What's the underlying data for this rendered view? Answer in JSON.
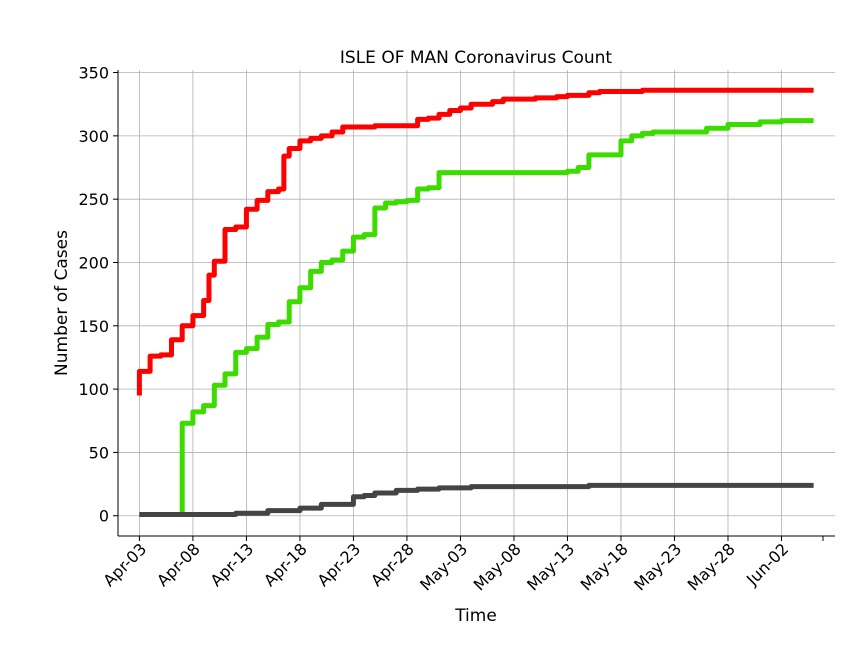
{
  "chart_data": {
    "type": "line",
    "title": "ISLE OF MAN Coronavirus Count",
    "xlabel": "Time",
    "ylabel": "Number of Cases",
    "x_start": "2020-04-01",
    "x_end": "2020-06-07",
    "ylim": [
      -16,
      352
    ],
    "yticks": [
      0,
      50,
      100,
      150,
      200,
      250,
      300,
      350
    ],
    "xticks": [
      {
        "date": "2020-04-03",
        "label": "Apr-03"
      },
      {
        "date": "2020-04-08",
        "label": "Apr-08"
      },
      {
        "date": "2020-04-13",
        "label": "Apr-13"
      },
      {
        "date": "2020-04-18",
        "label": "Apr-18"
      },
      {
        "date": "2020-04-23",
        "label": "Apr-23"
      },
      {
        "date": "2020-04-28",
        "label": "Apr-28"
      },
      {
        "date": "2020-05-03",
        "label": "May-03"
      },
      {
        "date": "2020-05-08",
        "label": "May-08"
      },
      {
        "date": "2020-05-13",
        "label": "May-13"
      },
      {
        "date": "2020-05-18",
        "label": "May-18"
      },
      {
        "date": "2020-05-23",
        "label": "May-23"
      },
      {
        "date": "2020-05-28",
        "label": "May-28"
      },
      {
        "date": "2020-06-02",
        "label": "Jun-02"
      }
    ],
    "grid": true,
    "step": true,
    "series": [
      {
        "color": "#ff0000",
        "points": [
          [
            "2020-04-03",
            95
          ],
          [
            "2020-04-03",
            114
          ],
          [
            "2020-04-04",
            126
          ],
          [
            "2020-04-05",
            127
          ],
          [
            "2020-04-06",
            139
          ],
          [
            "2020-04-07",
            150
          ],
          [
            "2020-04-08",
            158
          ],
          [
            "2020-04-09",
            170
          ],
          [
            "2020-04-09.5",
            190
          ],
          [
            "2020-04-10",
            201
          ],
          [
            "2020-04-11",
            226
          ],
          [
            "2020-04-12",
            228
          ],
          [
            "2020-04-13",
            242
          ],
          [
            "2020-04-14",
            249
          ],
          [
            "2020-04-15",
            256
          ],
          [
            "2020-04-16",
            258
          ],
          [
            "2020-04-16.5",
            284
          ],
          [
            "2020-04-17",
            290
          ],
          [
            "2020-04-18",
            296
          ],
          [
            "2020-04-19",
            298
          ],
          [
            "2020-04-20",
            300
          ],
          [
            "2020-04-21",
            303
          ],
          [
            "2020-04-22",
            307
          ],
          [
            "2020-04-25",
            308
          ],
          [
            "2020-04-29",
            313
          ],
          [
            "2020-04-30",
            314
          ],
          [
            "2020-05-01",
            317
          ],
          [
            "2020-05-02",
            320
          ],
          [
            "2020-05-03",
            322
          ],
          [
            "2020-05-04",
            325
          ],
          [
            "2020-05-06",
            327
          ],
          [
            "2020-05-07",
            329
          ],
          [
            "2020-05-10",
            330
          ],
          [
            "2020-05-12",
            331
          ],
          [
            "2020-05-13",
            332
          ],
          [
            "2020-05-15",
            334
          ],
          [
            "2020-05-16",
            335
          ],
          [
            "2020-05-20",
            336
          ],
          [
            "2020-06-05",
            336
          ]
        ]
      },
      {
        "color": "#3ddc00",
        "points": [
          [
            "2020-04-03",
            1
          ],
          [
            "2020-04-06",
            1
          ],
          [
            "2020-04-07",
            50
          ],
          [
            "2020-04-07",
            73
          ],
          [
            "2020-04-08",
            82
          ],
          [
            "2020-04-09",
            87
          ],
          [
            "2020-04-10",
            91
          ],
          [
            "2020-04-10",
            103
          ],
          [
            "2020-04-11",
            112
          ],
          [
            "2020-04-12",
            129
          ],
          [
            "2020-04-13",
            132
          ],
          [
            "2020-04-14",
            141
          ],
          [
            "2020-04-15",
            151
          ],
          [
            "2020-04-16",
            153
          ],
          [
            "2020-04-17",
            154
          ],
          [
            "2020-04-17",
            169
          ],
          [
            "2020-04-18",
            180
          ],
          [
            "2020-04-19",
            193
          ],
          [
            "2020-04-20",
            200
          ],
          [
            "2020-04-21",
            202
          ],
          [
            "2020-04-22",
            209
          ],
          [
            "2020-04-23",
            213
          ],
          [
            "2020-04-23",
            220
          ],
          [
            "2020-04-24",
            222
          ],
          [
            "2020-04-25",
            230
          ],
          [
            "2020-04-25",
            243
          ],
          [
            "2020-04-26",
            247
          ],
          [
            "2020-04-27",
            248
          ],
          [
            "2020-04-28",
            249
          ],
          [
            "2020-04-29",
            254
          ],
          [
            "2020-04-29",
            258
          ],
          [
            "2020-04-30",
            259
          ],
          [
            "2020-05-01",
            262
          ],
          [
            "2020-05-01",
            271
          ],
          [
            "2020-05-12",
            271
          ],
          [
            "2020-05-13",
            272
          ],
          [
            "2020-05-14",
            275
          ],
          [
            "2020-05-15",
            285
          ],
          [
            "2020-05-17",
            285
          ],
          [
            "2020-05-18",
            296
          ],
          [
            "2020-05-19",
            300
          ],
          [
            "2020-05-20",
            302
          ],
          [
            "2020-05-21",
            303
          ],
          [
            "2020-05-26",
            306
          ],
          [
            "2020-05-28",
            309
          ],
          [
            "2020-05-31",
            311
          ],
          [
            "2020-06-02",
            312
          ],
          [
            "2020-06-05",
            312
          ]
        ]
      },
      {
        "color": "#444444",
        "points": [
          [
            "2020-04-03",
            1
          ],
          [
            "2020-04-11",
            1
          ],
          [
            "2020-04-12",
            2
          ],
          [
            "2020-04-15",
            2
          ],
          [
            "2020-04-15",
            4
          ],
          [
            "2020-04-18",
            4
          ],
          [
            "2020-04-18",
            6
          ],
          [
            "2020-04-20",
            6
          ],
          [
            "2020-04-20",
            9
          ],
          [
            "2020-04-22",
            9
          ],
          [
            "2020-04-23",
            15
          ],
          [
            "2020-04-24",
            16
          ],
          [
            "2020-04-25",
            18
          ],
          [
            "2020-04-27",
            18
          ],
          [
            "2020-04-27",
            20
          ],
          [
            "2020-04-29",
            21
          ],
          [
            "2020-05-01",
            22
          ],
          [
            "2020-05-04",
            23
          ],
          [
            "2020-05-15",
            24
          ],
          [
            "2020-06-05",
            24
          ]
        ]
      }
    ]
  }
}
